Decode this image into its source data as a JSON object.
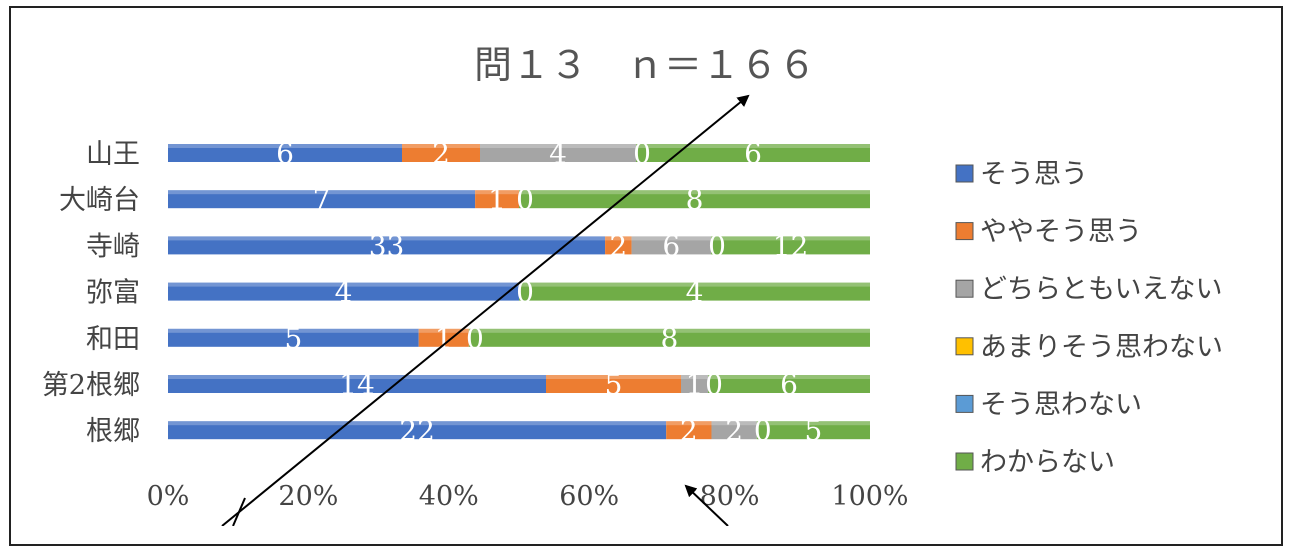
{
  "chart_data": {
    "type": "bar",
    "orientation": "horizontal",
    "stacked": "percent",
    "title": "問１３　ｎ＝１６６",
    "categories": [
      "山王",
      "大崎台",
      "寺崎",
      "弥富",
      "和田",
      "第2根郷",
      "根郷"
    ],
    "series": [
      {
        "name": "そう思う",
        "values": [
          6,
          7,
          33,
          4,
          5,
          14,
          22
        ],
        "color": "#4472C4"
      },
      {
        "name": "ややそう思う",
        "values": [
          2,
          1,
          2,
          0,
          1,
          5,
          2
        ],
        "color": "#ED7D31"
      },
      {
        "name": "どちらともいえない",
        "values": [
          4,
          0,
          6,
          0,
          0,
          1,
          2
        ],
        "color": "#A5A5A5"
      },
      {
        "name": "あまりそう思わない",
        "values": [
          0,
          0,
          0,
          0,
          0,
          0,
          0
        ],
        "color": "#FFC000"
      },
      {
        "name": "そう思わない",
        "values": [
          0,
          0,
          0,
          0,
          0,
          0,
          0
        ],
        "color": "#5B9BD5"
      },
      {
        "name": "わからない",
        "values": [
          6,
          8,
          12,
          4,
          8,
          6,
          5
        ],
        "color": "#70AD47"
      }
    ],
    "labels": [
      [
        "6",
        "2",
        "4",
        "0",
        "6"
      ],
      [
        "7",
        "1",
        "0",
        "8"
      ],
      [
        "33",
        "2",
        "6",
        "0",
        "12"
      ],
      [
        "4",
        "0",
        "4"
      ],
      [
        "5",
        "1",
        "0",
        "8"
      ],
      [
        "14",
        "5",
        "1",
        "0",
        "6"
      ],
      [
        "22",
        "2",
        "2",
        "0",
        "5"
      ]
    ],
    "x_ticks": [
      "0%",
      "20%",
      "40%",
      "60%",
      "80%",
      "100%"
    ],
    "xlim": [
      0,
      100
    ],
    "grid": false,
    "legend": "right"
  }
}
